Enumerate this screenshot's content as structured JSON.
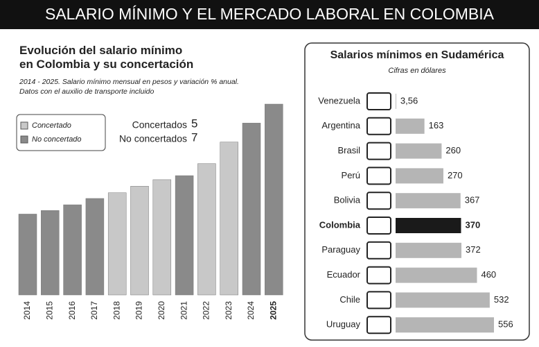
{
  "header": {
    "title": "SALARIO MÍNIMO Y EL MERCADO LABORAL EN COLOMBIA"
  },
  "chart_data": [
    {
      "type": "bar",
      "title": "Evolución del salario mínimo en Colombia y su concertación",
      "subtitle": "2014 - 2025. Salario mínimo mensual en pesos y variación % anual. Datos con el auxilio de transporte incluido",
      "categories": [
        "2014",
        "2015",
        "2016",
        "2017",
        "2018",
        "2019",
        "2020",
        "2021",
        "2022",
        "2023",
        "2024",
        "2025"
      ],
      "series": [
        {
          "name": "Concertado",
          "color": "#c8c8c8",
          "values": [
            null,
            null,
            null,
            null,
            869453,
            925148,
            980657,
            null,
            1117172,
            1300606,
            null,
            null
          ]
        },
        {
          "name": "No concertado",
          "color": "#8a8a8a",
          "values": [
            688000,
            718350,
            767155,
            820857,
            null,
            null,
            null,
            1014980,
            null,
            null,
            1462000,
            1623500
          ]
        }
      ],
      "summary": [
        {
          "label": "Concertados",
          "count": 5
        },
        {
          "label": "No concertados",
          "count": 7
        }
      ]
    },
    {
      "type": "horizontal-bar",
      "title": "Salarios mínimos en Sudamérica",
      "subtitle": "Cifras en dólares",
      "categories": [
        "Venezuela",
        "Argentina",
        "Brasil",
        "Perú",
        "Bolivia",
        "Colombia",
        "Paraguay",
        "Ecuador",
        "Chile",
        "Uruguay"
      ],
      "values": [
        3.56,
        163,
        260,
        270,
        367,
        370,
        372,
        460,
        532,
        556
      ],
      "value_labels": [
        "3,56",
        "163",
        "260",
        "270",
        "367",
        "370",
        "372",
        "460",
        "532",
        "556"
      ],
      "color": "#b5b5b5",
      "highlight": {
        "category": "Colombia",
        "color": "#1a1a1a"
      }
    }
  ]
}
